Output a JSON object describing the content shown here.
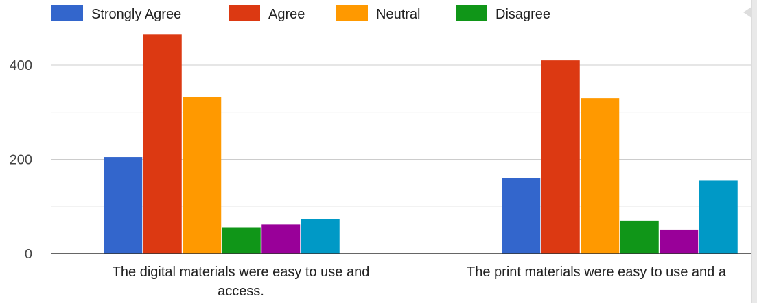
{
  "chart_data": {
    "type": "bar",
    "categories": [
      "The digital materials were easy to use and access.",
      "The print materials were easy to use and a"
    ],
    "category_lines": [
      [
        "The digital materials were easy to use and",
        "access."
      ],
      [
        "The print materials were easy to use and a"
      ]
    ],
    "series": [
      {
        "name": "Strongly Agree",
        "color": "#3366cc",
        "values": [
          205,
          160
        ]
      },
      {
        "name": "Agree",
        "color": "#dc3912",
        "values": [
          465,
          410
        ]
      },
      {
        "name": "Neutral",
        "color": "#ff9900",
        "values": [
          333,
          330
        ]
      },
      {
        "name": "Disagree",
        "color": "#109618",
        "values": [
          56,
          70
        ]
      },
      {
        "name": "",
        "color": "#990099",
        "values": [
          62,
          51
        ]
      },
      {
        "name": "",
        "color": "#0099c6",
        "values": [
          73,
          155
        ]
      }
    ],
    "ylim": [
      0,
      480
    ],
    "yticks": [
      0,
      200,
      400
    ],
    "grid": true,
    "legend_position": "top",
    "title": "",
    "xlabel": "",
    "ylabel": ""
  },
  "icons": {
    "scroll_arrow": "caret-left-icon"
  }
}
